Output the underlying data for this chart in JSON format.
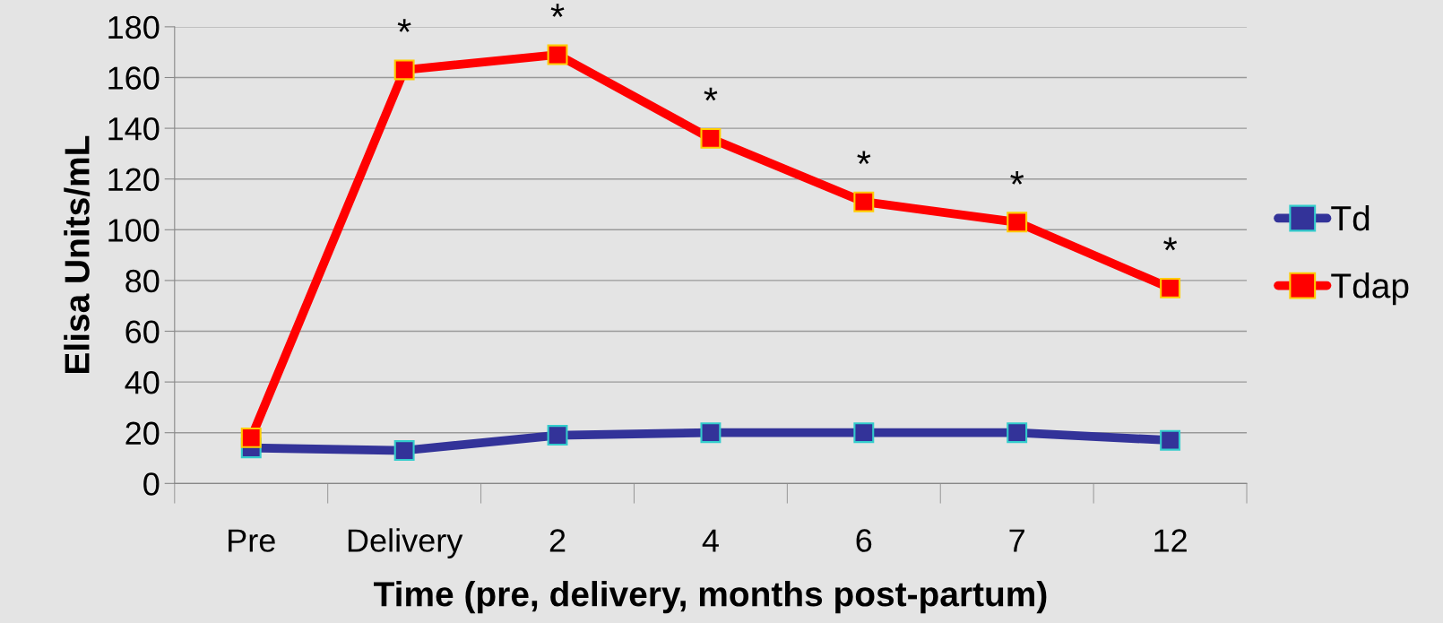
{
  "chart_data": {
    "type": "line",
    "xlabel": "Time (pre, delivery, months post-partum)",
    "ylabel": "Elisa Units/mL",
    "categories": [
      "Pre",
      "Delivery",
      "2",
      "4",
      "6",
      "7",
      "12"
    ],
    "series": [
      {
        "name": "Td",
        "color": "#333399",
        "values": [
          14,
          13,
          19,
          20,
          20,
          20,
          17
        ]
      },
      {
        "name": "Tdap",
        "color": "#ff0000",
        "values": [
          18,
          163,
          169,
          136,
          111,
          103,
          77
        ]
      }
    ],
    "ylim": [
      0,
      180
    ],
    "yticks": [
      0,
      20,
      40,
      60,
      80,
      100,
      120,
      140,
      160,
      180
    ],
    "grid": "y",
    "legend": "right",
    "marker": "square",
    "line_style": "solid",
    "annotations": [
      {
        "text": "*",
        "x": "Delivery",
        "y": 163
      },
      {
        "text": "*",
        "x": "2",
        "y": 169
      },
      {
        "text": "*",
        "x": "4",
        "y": 136
      },
      {
        "text": "*",
        "x": "6",
        "y": 111
      },
      {
        "text": "*",
        "x": "7",
        "y": 103
      },
      {
        "text": "*",
        "x": "12",
        "y": 77
      }
    ]
  }
}
